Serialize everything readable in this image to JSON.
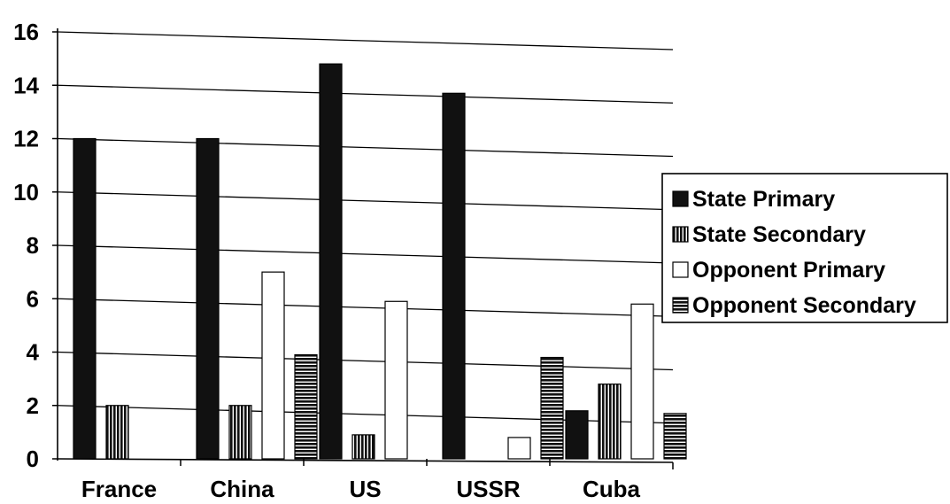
{
  "chart_data": {
    "type": "bar",
    "title": "",
    "xlabel": "",
    "ylabel": "",
    "categories": [
      "France",
      "China",
      "US",
      "USSR",
      "Cuba"
    ],
    "ylim": [
      0,
      16
    ],
    "yticks": [
      0,
      2,
      4,
      6,
      8,
      10,
      12,
      14,
      16
    ],
    "ytick_labels": [
      "0",
      "2",
      "4",
      "6",
      "8",
      "10",
      "12",
      "14",
      "16"
    ],
    "grid": true,
    "legend_position": "right",
    "series": [
      {
        "name": "State Primary",
        "values": [
          12,
          12,
          14.8,
          13.7,
          1.8
        ],
        "fill": "solid-black"
      },
      {
        "name": "State Secondary",
        "values": [
          2,
          2,
          0.9,
          0,
          2.8
        ],
        "fill": "vertical-stripes"
      },
      {
        "name": "Opponent Primary",
        "values": [
          0,
          7,
          5.9,
          0.8,
          5.8
        ],
        "fill": "white"
      },
      {
        "name": "Opponent Secondary",
        "values": [
          0,
          3.9,
          0,
          3.8,
          1.7
        ],
        "fill": "horizontal-stripes"
      }
    ],
    "colors": {
      "bar_dark": "#111111",
      "stripe_light": "#ffffff",
      "axis": "#000000"
    }
  }
}
